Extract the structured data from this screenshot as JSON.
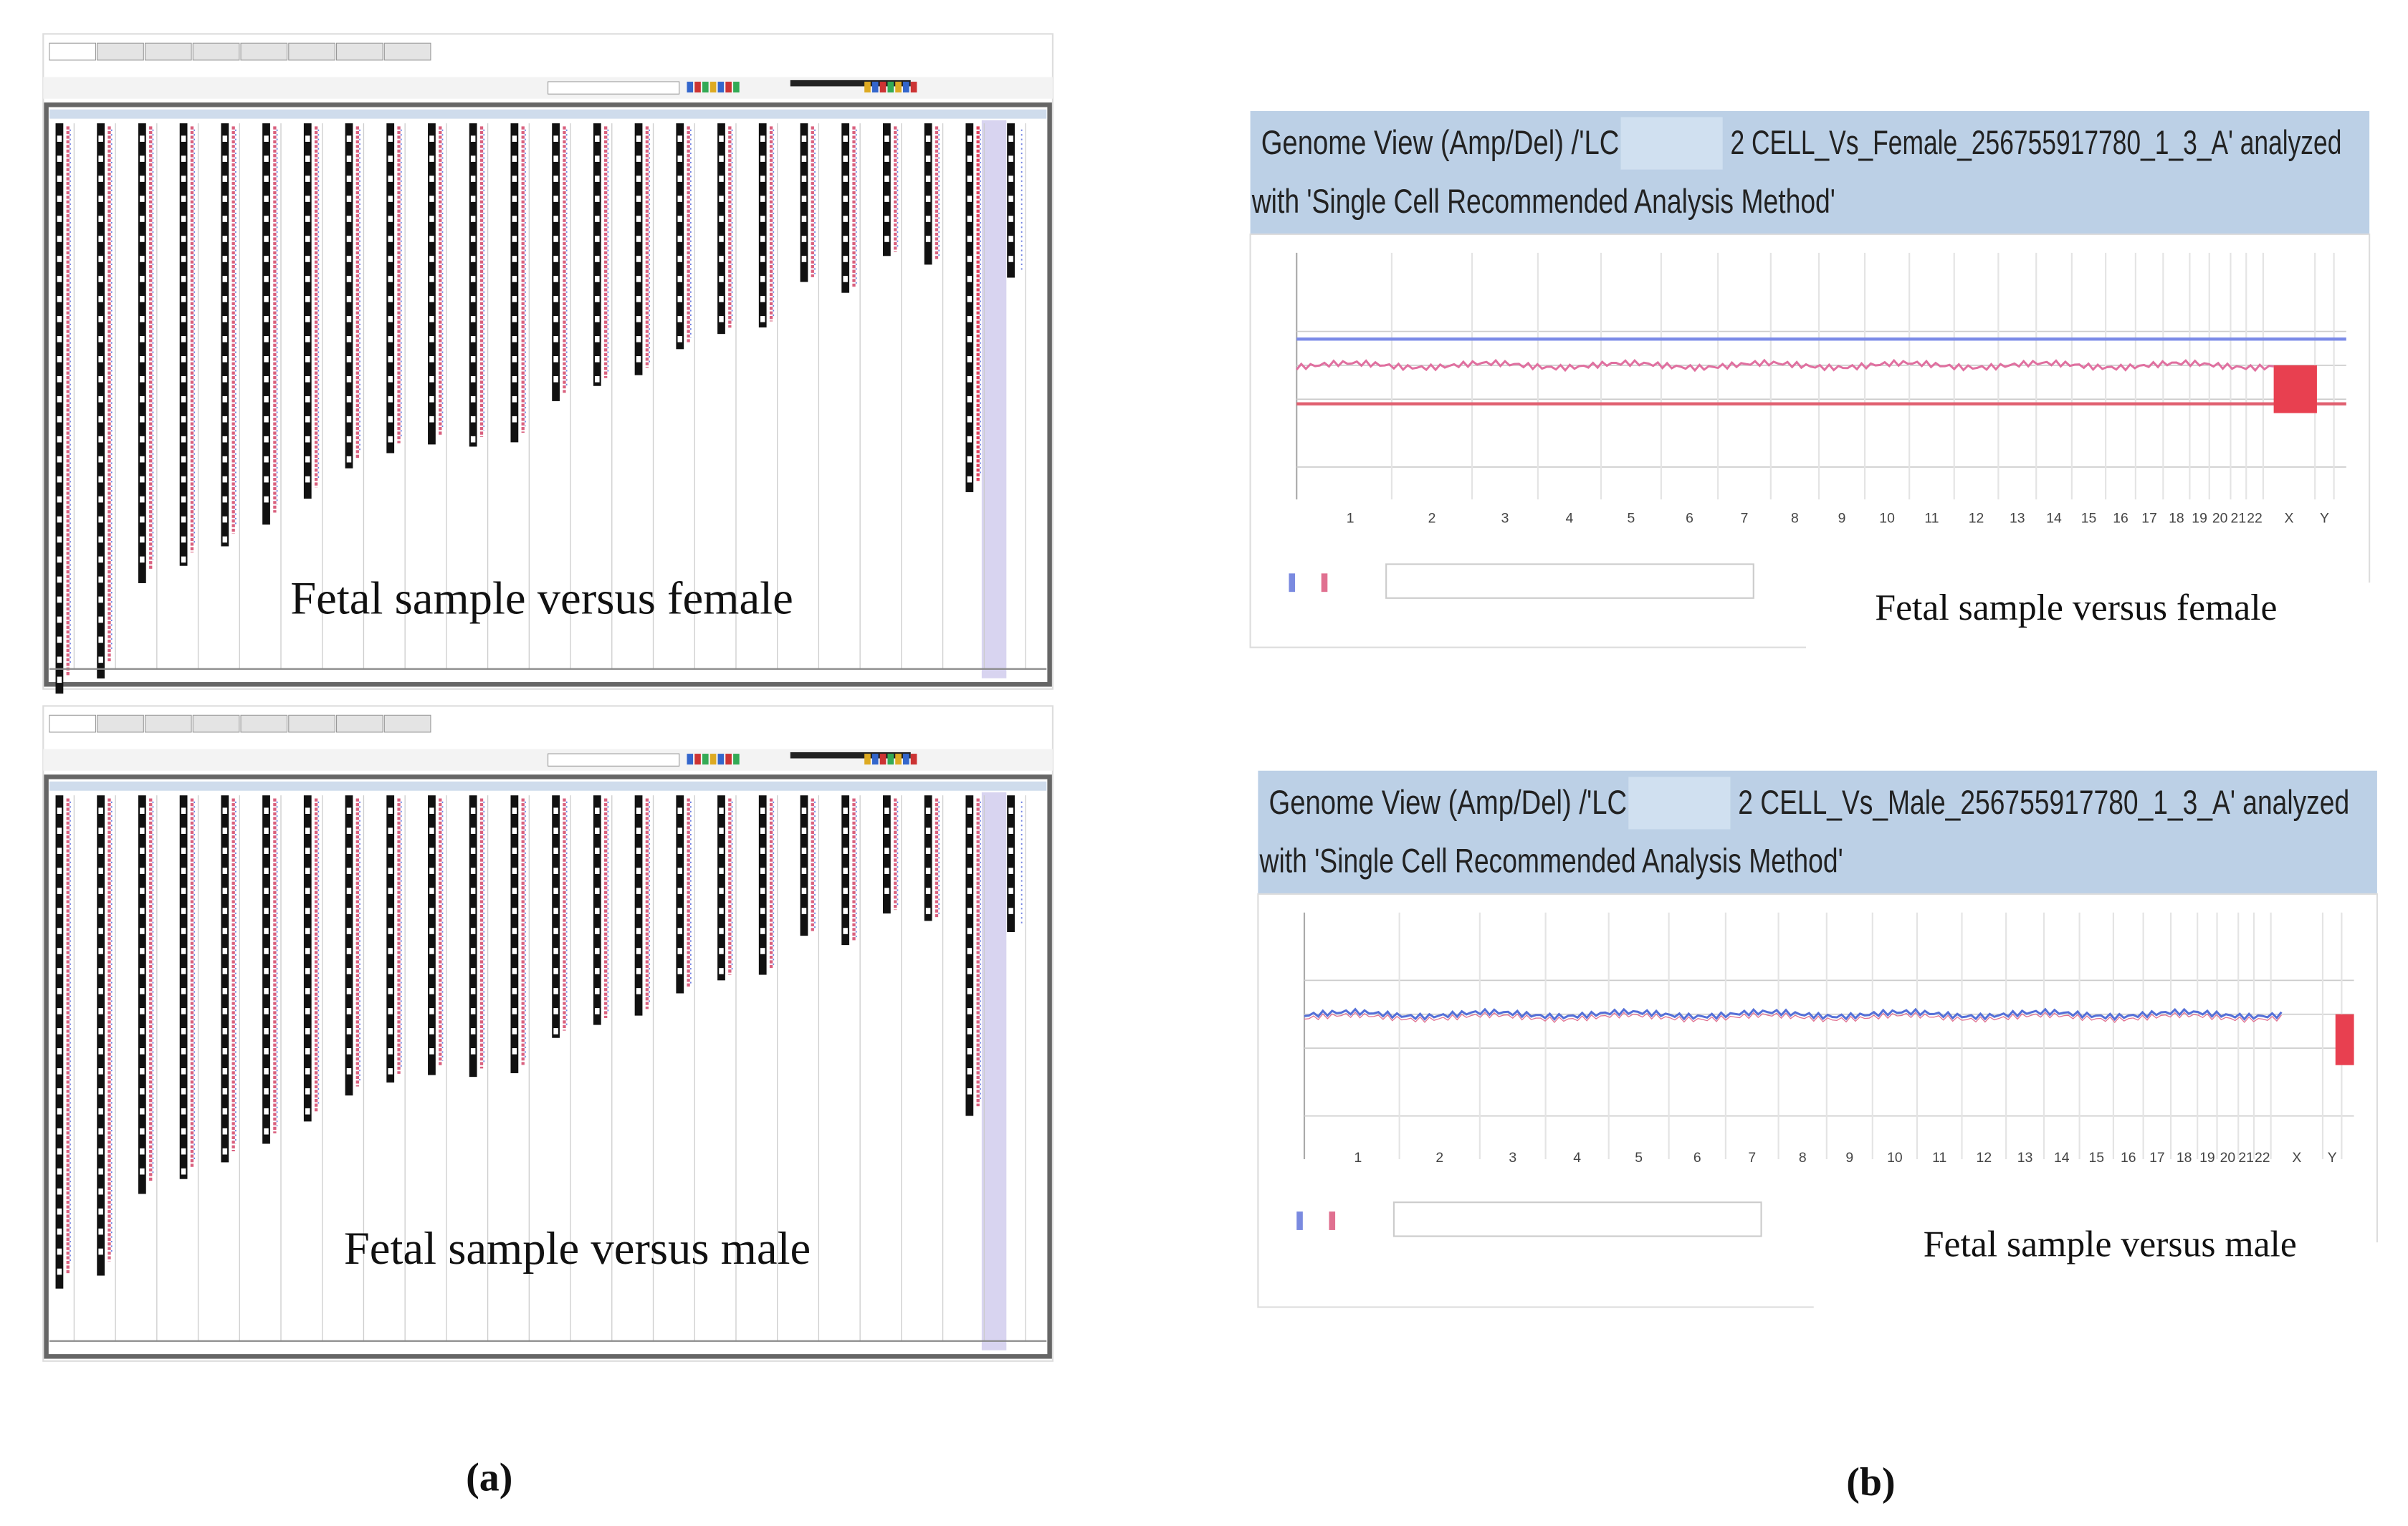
{
  "panel_a": {
    "label": "(a)",
    "karyograms": [
      {
        "caption": "Fetal sample versus female"
      },
      {
        "caption": "Fetal sample versus male"
      }
    ]
  },
  "panel_b": {
    "label": "(b)",
    "chromosomes": [
      "1",
      "2",
      "3",
      "4",
      "5",
      "6",
      "7",
      "8",
      "9",
      "10",
      "11",
      "12",
      "13",
      "14",
      "15",
      "16",
      "17",
      "18",
      "19",
      "20",
      "21",
      "22",
      "X",
      "Y"
    ],
    "views": [
      {
        "title_start": "Genome View (Amp/Del) /'LC",
        "title_end": "2 CELL_Vs_Female_256755917780_1_3_A' analyzed",
        "title_line2": "with 'Single Cell Recommended Analysis Method'",
        "caption": "Fetal sample versus female"
      },
      {
        "title_start": "Genome View (Amp/Del) /'LC",
        "title_end": "2 CELL_Vs_Male_256755917780_1_3_A' analyzed",
        "title_line2": "with 'Single Cell Recommended Analysis Method'",
        "caption": "Fetal sample versus male"
      }
    ]
  }
}
